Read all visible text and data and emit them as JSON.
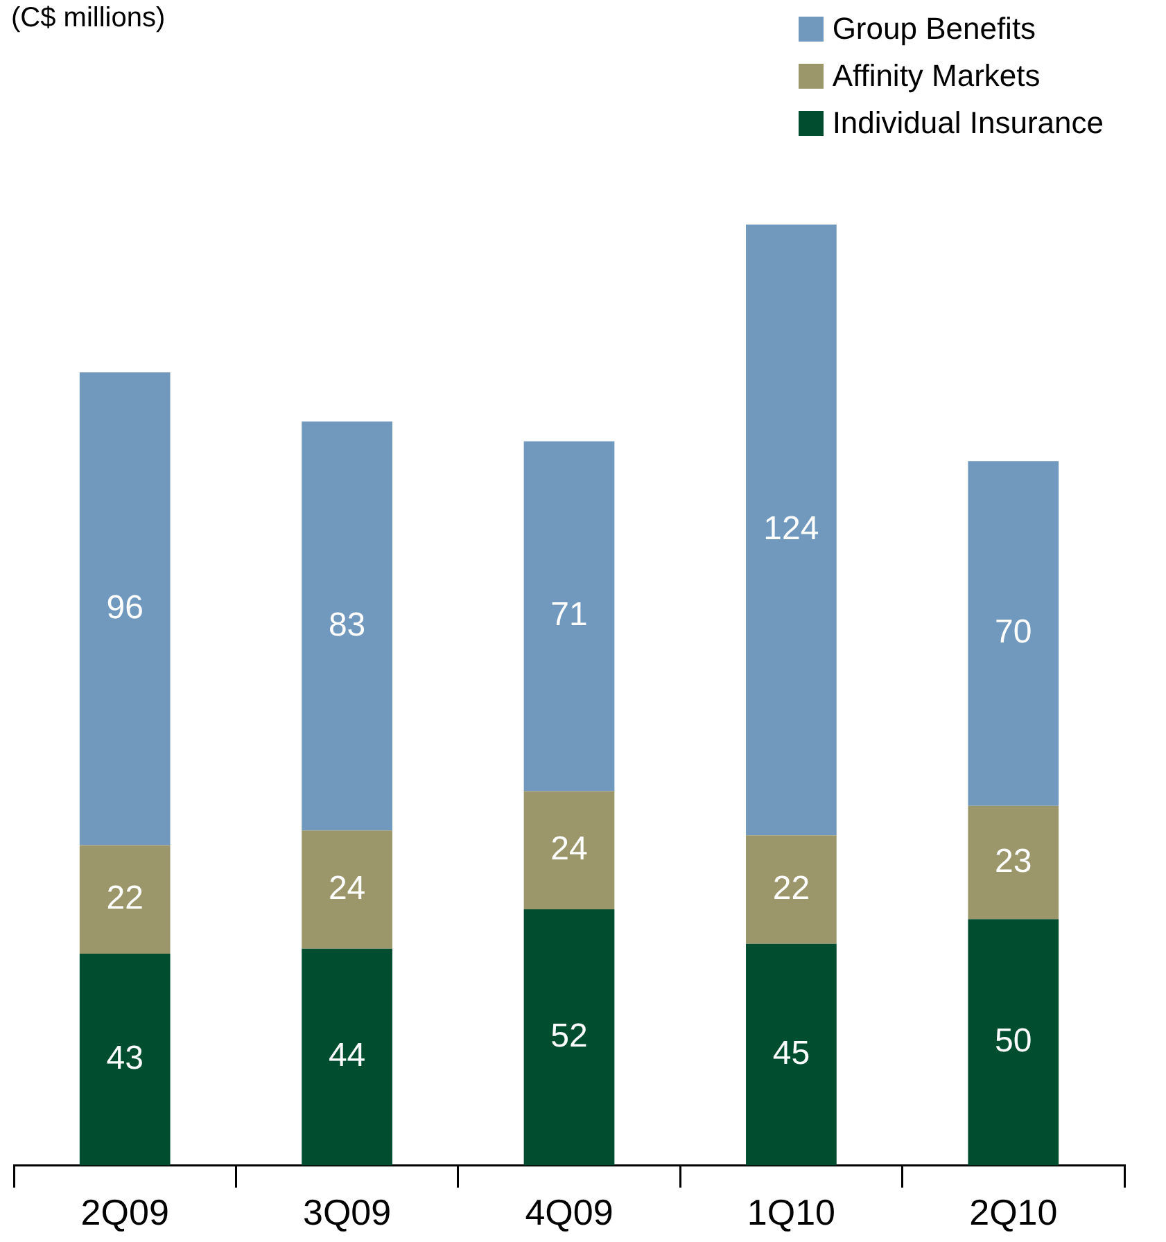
{
  "chart_data": {
    "type": "bar",
    "title": "(C$ millions)",
    "categories": [
      "2Q09",
      "3Q09",
      "4Q09",
      "1Q10",
      "2Q10"
    ],
    "stacked": true,
    "data_labels": true,
    "legend": "top right",
    "grid": false,
    "series": [
      {
        "name": "Individual Insurance",
        "color": "#004d30",
        "values": [
          43,
          44,
          52,
          45,
          50
        ]
      },
      {
        "name": "Affinity Markets",
        "color": "#9b976b",
        "values": [
          22,
          24,
          24,
          22,
          23
        ]
      },
      {
        "name": "Group Benefits",
        "color": "#7099bd",
        "values": [
          96,
          83,
          71,
          124,
          70
        ]
      }
    ]
  }
}
